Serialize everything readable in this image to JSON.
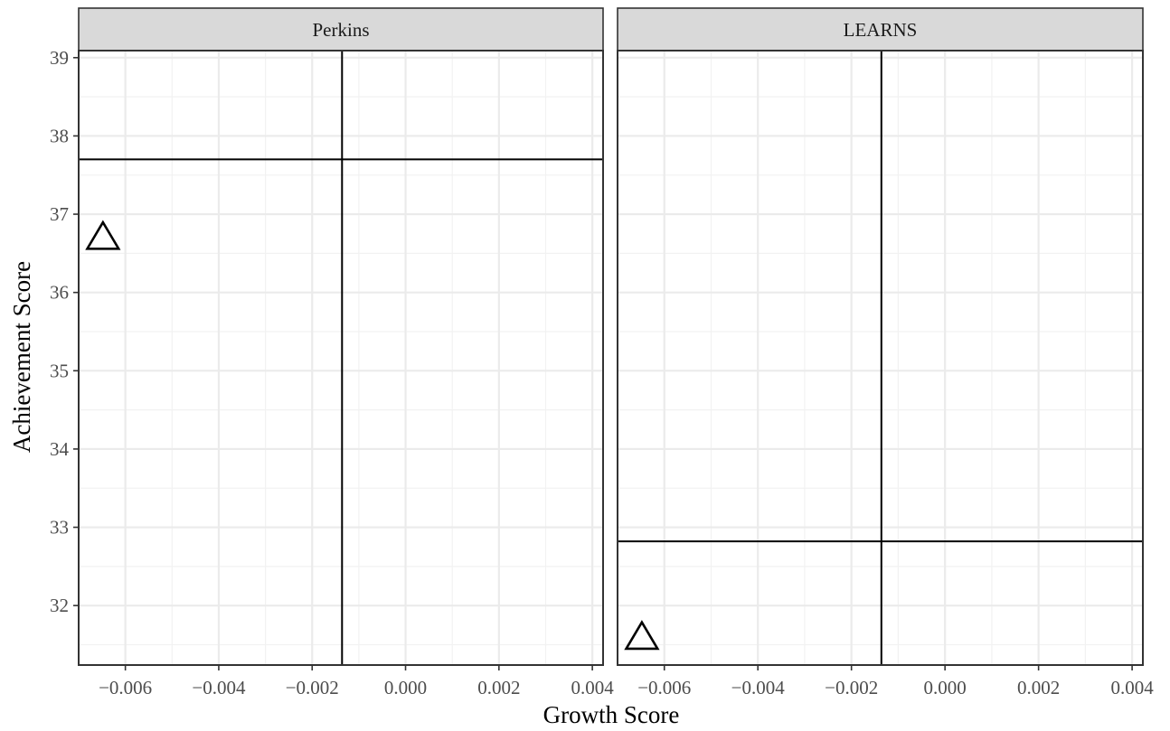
{
  "chart_data": {
    "type": "scatter",
    "xlabel": "Growth Score",
    "ylabel": "Achievement Score",
    "xlim": [
      -0.007,
      0.00423
    ],
    "ylim": [
      31.24,
      39.09
    ],
    "x_ticks": [
      -0.006,
      -0.004,
      -0.002,
      0.0,
      0.002,
      0.004
    ],
    "x_tick_labels": [
      "−0.006",
      "−0.004",
      "−0.002",
      "0.000",
      "0.002",
      "0.004"
    ],
    "y_ticks": [
      32,
      33,
      34,
      35,
      36,
      37,
      38,
      39
    ],
    "y_tick_labels": [
      "32",
      "33",
      "34",
      "35",
      "36",
      "37",
      "38",
      "39"
    ],
    "grid": true,
    "marker": "open-triangle",
    "panels": [
      {
        "name": "Perkins",
        "points": [
          {
            "x": -0.00648,
            "y": 36.7
          }
        ],
        "vline_x": -0.00136,
        "hline_y": 37.7
      },
      {
        "name": "LEARNS",
        "points": [
          {
            "x": -0.00648,
            "y": 31.59
          }
        ],
        "vline_x": -0.00136,
        "hline_y": 32.82
      }
    ]
  }
}
